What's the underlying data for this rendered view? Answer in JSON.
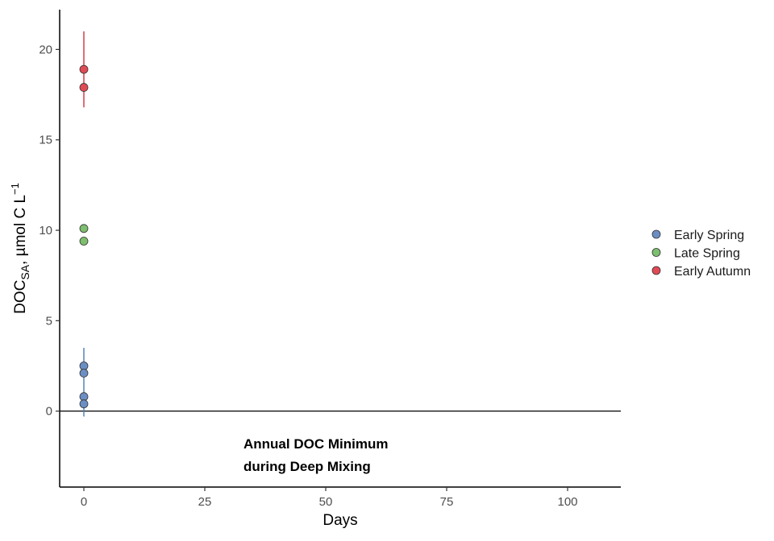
{
  "chart_data": {
    "type": "scatter",
    "xlabel": "Days",
    "ylabel": {
      "main": "DOC",
      "sub": "SA",
      "rest": ", µmol C L",
      "sup": "−1"
    },
    "xlim": [
      -5,
      111
    ],
    "ylim": [
      -4.2,
      22.2
    ],
    "x_ticks": [
      0,
      25,
      50,
      75,
      100
    ],
    "y_ticks": [
      0,
      5,
      10,
      15,
      20
    ],
    "grid": false,
    "legend_position": "right",
    "reference_line": {
      "y": 0,
      "x_from": -5,
      "x_to": 111
    },
    "annotation": [
      "Annual DOC Minimum",
      "during Deep Mixing"
    ],
    "series": [
      {
        "name": "Early Spring",
        "color": "#6b8fc4",
        "line_color": "#4a7bb7",
        "points": [
          {
            "x": 0,
            "y": 2.5
          },
          {
            "x": 0,
            "y": 2.1
          },
          {
            "x": 0,
            "y": 0.8
          },
          {
            "x": 0,
            "y": 0.4
          }
        ],
        "errorbar": {
          "x": 0,
          "ymin": -0.3,
          "ymax": 3.5
        }
      },
      {
        "name": "Late Spring",
        "color": "#7dbf6e",
        "line_color": "#4daf4a",
        "points": [
          {
            "x": 0,
            "y": 10.1
          },
          {
            "x": 0,
            "y": 9.4
          }
        ],
        "errorbar": null
      },
      {
        "name": "Early Autumn",
        "color": "#e04a55",
        "line_color": "#d0313d",
        "points": [
          {
            "x": 0,
            "y": 18.9
          },
          {
            "x": 0,
            "y": 17.9
          }
        ],
        "errorbar": {
          "x": 0,
          "ymin": 16.8,
          "ymax": 21.0
        }
      }
    ]
  }
}
